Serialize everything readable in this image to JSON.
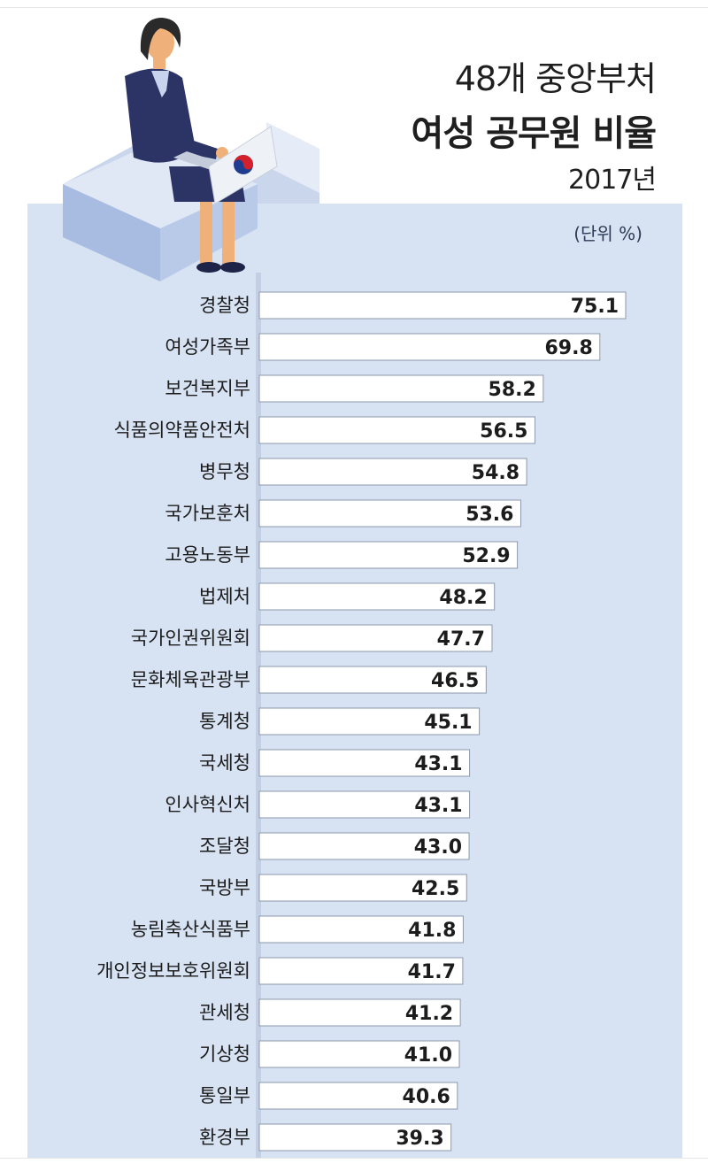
{
  "title": {
    "line1": "48개 중앙부처",
    "line2": "여성 공무원 비율",
    "line3": "2017년"
  },
  "unit": "(단위 %)",
  "colors": {
    "background": "#d7e2f2",
    "bar_fill": "#ffffff",
    "bar_stroke": "#8d99ae",
    "axis": "#5f6b80",
    "jacket": "#2c3466",
    "skin": "#f0b07a",
    "hair": "#2a2a2a",
    "laptop": "#eef1f6"
  },
  "illustration": {
    "icon": "woman-at-laptop-illustration",
    "emblem": "taegeuk-emblem-icon"
  },
  "chart_data": {
    "type": "bar",
    "orientation": "horizontal",
    "categories": [
      "경찰청",
      "여성가족부",
      "보건복지부",
      "식품의약품안전처",
      "병무청",
      "국가보훈처",
      "고용노동부",
      "법제처",
      "국가인권위원회",
      "문화체육관광부",
      "통계청",
      "국세청",
      "인사혁신처",
      "조달청",
      "국방부",
      "농림축산식품부",
      "개인정보보호위원회",
      "관세청",
      "기상청",
      "통일부",
      "환경부"
    ],
    "values": [
      75.1,
      69.8,
      58.2,
      56.5,
      54.8,
      53.6,
      52.9,
      48.2,
      47.7,
      46.5,
      45.1,
      43.1,
      43.1,
      43.0,
      42.5,
      41.8,
      41.7,
      41.2,
      41.0,
      40.6,
      39.3
    ],
    "value_labels": [
      "75.1",
      "69.8",
      "58.2",
      "56.5",
      "54.8",
      "53.6",
      "52.9",
      "48.2",
      "47.7",
      "46.5",
      "45.1",
      "43.1",
      "43.1",
      "43.0",
      "42.5",
      "41.8",
      "41.7",
      "41.2",
      "41.0",
      "40.6",
      "39.3"
    ],
    "xlim": [
      0,
      75.1
    ],
    "grid": false,
    "legend": "none"
  }
}
